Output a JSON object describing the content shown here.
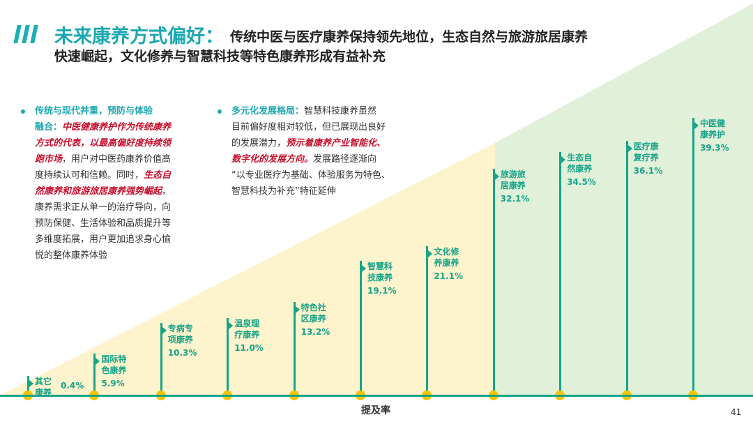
{
  "header": {
    "title": "未来康养方式偏好：",
    "subtitle_line1": "传统中医与医疗康养保持领先地位，生态自然与旅游旅居康养",
    "subtitle_line2": "快速崛起，文化修养与智慧科技等特色康养形成有益补充"
  },
  "left_block": {
    "head": "传统与现代并重，预防与体验",
    "lines": [
      {
        "segments": [
          {
            "text": "融合：",
            "style": "head"
          },
          {
            "text": "中医健康养护作为传统康养",
            "style": "red"
          }
        ]
      },
      {
        "segments": [
          {
            "text": "方式的代表，以最高偏好度持续领",
            "style": "red"
          }
        ]
      },
      {
        "segments": [
          {
            "text": "跑市场",
            "style": "red"
          },
          {
            "text": "，用户对中医药康养价值高",
            "style": "normal"
          }
        ]
      },
      {
        "segments": [
          {
            "text": "度持续认可和信赖。同时，",
            "style": "normal"
          },
          {
            "text": "生态自",
            "style": "red"
          }
        ]
      },
      {
        "segments": [
          {
            "text": "然康养和旅游旅居康养强势崛起",
            "style": "red"
          },
          {
            "text": "，",
            "style": "normal"
          }
        ]
      },
      {
        "segments": [
          {
            "text": "康养需求正从单一的治疗导向，向",
            "style": "normal"
          }
        ]
      },
      {
        "segments": [
          {
            "text": "预防保健、生活体验和品质提升等",
            "style": "normal"
          }
        ]
      },
      {
        "segments": [
          {
            "text": "多维度拓展，用户更加追求身心愉",
            "style": "normal"
          }
        ]
      },
      {
        "segments": [
          {
            "text": "悦的整体康养体验",
            "style": "normal"
          }
        ]
      }
    ]
  },
  "right_block": {
    "lines": [
      {
        "segments": [
          {
            "text": "多元化发展格局：",
            "style": "head"
          },
          {
            "text": "智慧科技康养虽然",
            "style": "normal"
          }
        ]
      },
      {
        "segments": [
          {
            "text": "目前偏好度相对较低，但已展现出良好",
            "style": "normal"
          }
        ]
      },
      {
        "segments": [
          {
            "text": "的发展潜力，",
            "style": "normal"
          },
          {
            "text": "预示着康养产业智能化、",
            "style": "red"
          }
        ]
      },
      {
        "segments": [
          {
            "text": "数字化的发展方向。",
            "style": "red"
          },
          {
            "text": "发展路径逐渐向",
            "style": "normal"
          }
        ]
      },
      {
        "segments": [
          {
            "text": "“以专业医疗为基础、体验服务为特色、",
            "style": "normal"
          }
        ]
      },
      {
        "segments": [
          {
            "text": "智慧科技为补充”特征延伸",
            "style": "normal"
          }
        ]
      }
    ]
  },
  "chart_data": {
    "type": "bar",
    "xlabel": "提及率",
    "categories": [
      "其它康养",
      "国际特色康养",
      "专病专项康养",
      "温泉理疗康养",
      "特色社区康养",
      "智慧科技康养",
      "文化修养康养",
      "旅游旅居康养",
      "生态自然康养",
      "医疗康复疗养",
      "中医健康养护"
    ],
    "label_lines": [
      [
        "其它",
        "康养"
      ],
      [
        "国际特",
        "色康养"
      ],
      [
        "专病专",
        "项康养"
      ],
      [
        "温泉理",
        "疗康养"
      ],
      [
        "特色社",
        "区康养"
      ],
      [
        "智慧科",
        "技康养"
      ],
      [
        "文化修",
        "养康养"
      ],
      [
        "旅游旅",
        "居康养"
      ],
      [
        "生态自",
        "然康养"
      ],
      [
        "医疗康",
        "复疗养"
      ],
      [
        "中医健",
        "康养护"
      ]
    ],
    "values": [
      0.4,
      5.9,
      10.3,
      11.0,
      13.2,
      19.1,
      21.1,
      32.1,
      34.5,
      36.1,
      39.3
    ],
    "value_labels": [
      "0.4%",
      "5.9%",
      "10.3%",
      "11.0%",
      "13.2%",
      "19.1%",
      "21.1%",
      "32.1%",
      "34.5%",
      "36.1%",
      "39.3%"
    ],
    "ylim": [
      0,
      41
    ]
  },
  "colors": {
    "accent": "#1aa8b0",
    "bar": "#17a489",
    "marker": "#f5c400",
    "highlight": "#c8102e",
    "yellow_area": "#fdf3cc",
    "green_area": "#e1f0d9"
  },
  "page_number": "41"
}
